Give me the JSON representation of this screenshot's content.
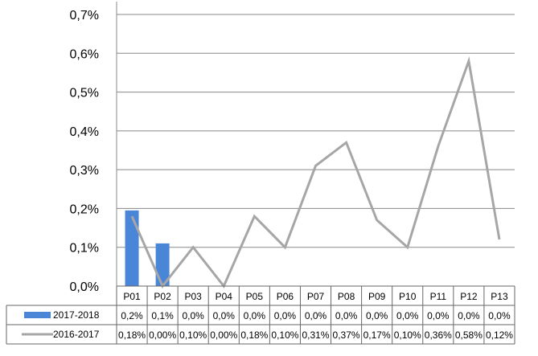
{
  "chart_data": {
    "type": "bar",
    "categories": [
      "P01",
      "P02",
      "P03",
      "P04",
      "P05",
      "P06",
      "P07",
      "P08",
      "P09",
      "P10",
      "P11",
      "P12",
      "P13"
    ],
    "ylim": [
      0,
      0.7
    ],
    "y_ticks": [
      "0,0%",
      "0,1%",
      "0,2%",
      "0,3%",
      "0,4%",
      "0,5%",
      "0,6%",
      "0,7%"
    ],
    "grid": true,
    "legend": "data-table",
    "series": [
      {
        "name": "2017-2018",
        "type": "bar",
        "color": "#4a86d8",
        "values": [
          0.195,
          0.11,
          0,
          0,
          0,
          0,
          0,
          0,
          0,
          0,
          0,
          0,
          0
        ],
        "labels": [
          "0,2%",
          "0,1%",
          "0,0%",
          "0,0%",
          "0,0%",
          "0,0%",
          "0,0%",
          "0,0%",
          "0,0%",
          "0,0%",
          "0,0%",
          "0,0%",
          "0,0%"
        ]
      },
      {
        "name": "2016-2017",
        "type": "line",
        "color": "#a6a6a6",
        "values": [
          0.18,
          0.0,
          0.1,
          0.0,
          0.18,
          0.1,
          0.31,
          0.37,
          0.17,
          0.1,
          0.36,
          0.58,
          0.12
        ],
        "labels": [
          "0,18%",
          "0,00%",
          "0,10%",
          "0,00%",
          "0,18%",
          "0,10%",
          "0,31%",
          "0,37%",
          "0,17%",
          "0,10%",
          "0,36%",
          "0,58%",
          "0,12%"
        ]
      }
    ]
  }
}
